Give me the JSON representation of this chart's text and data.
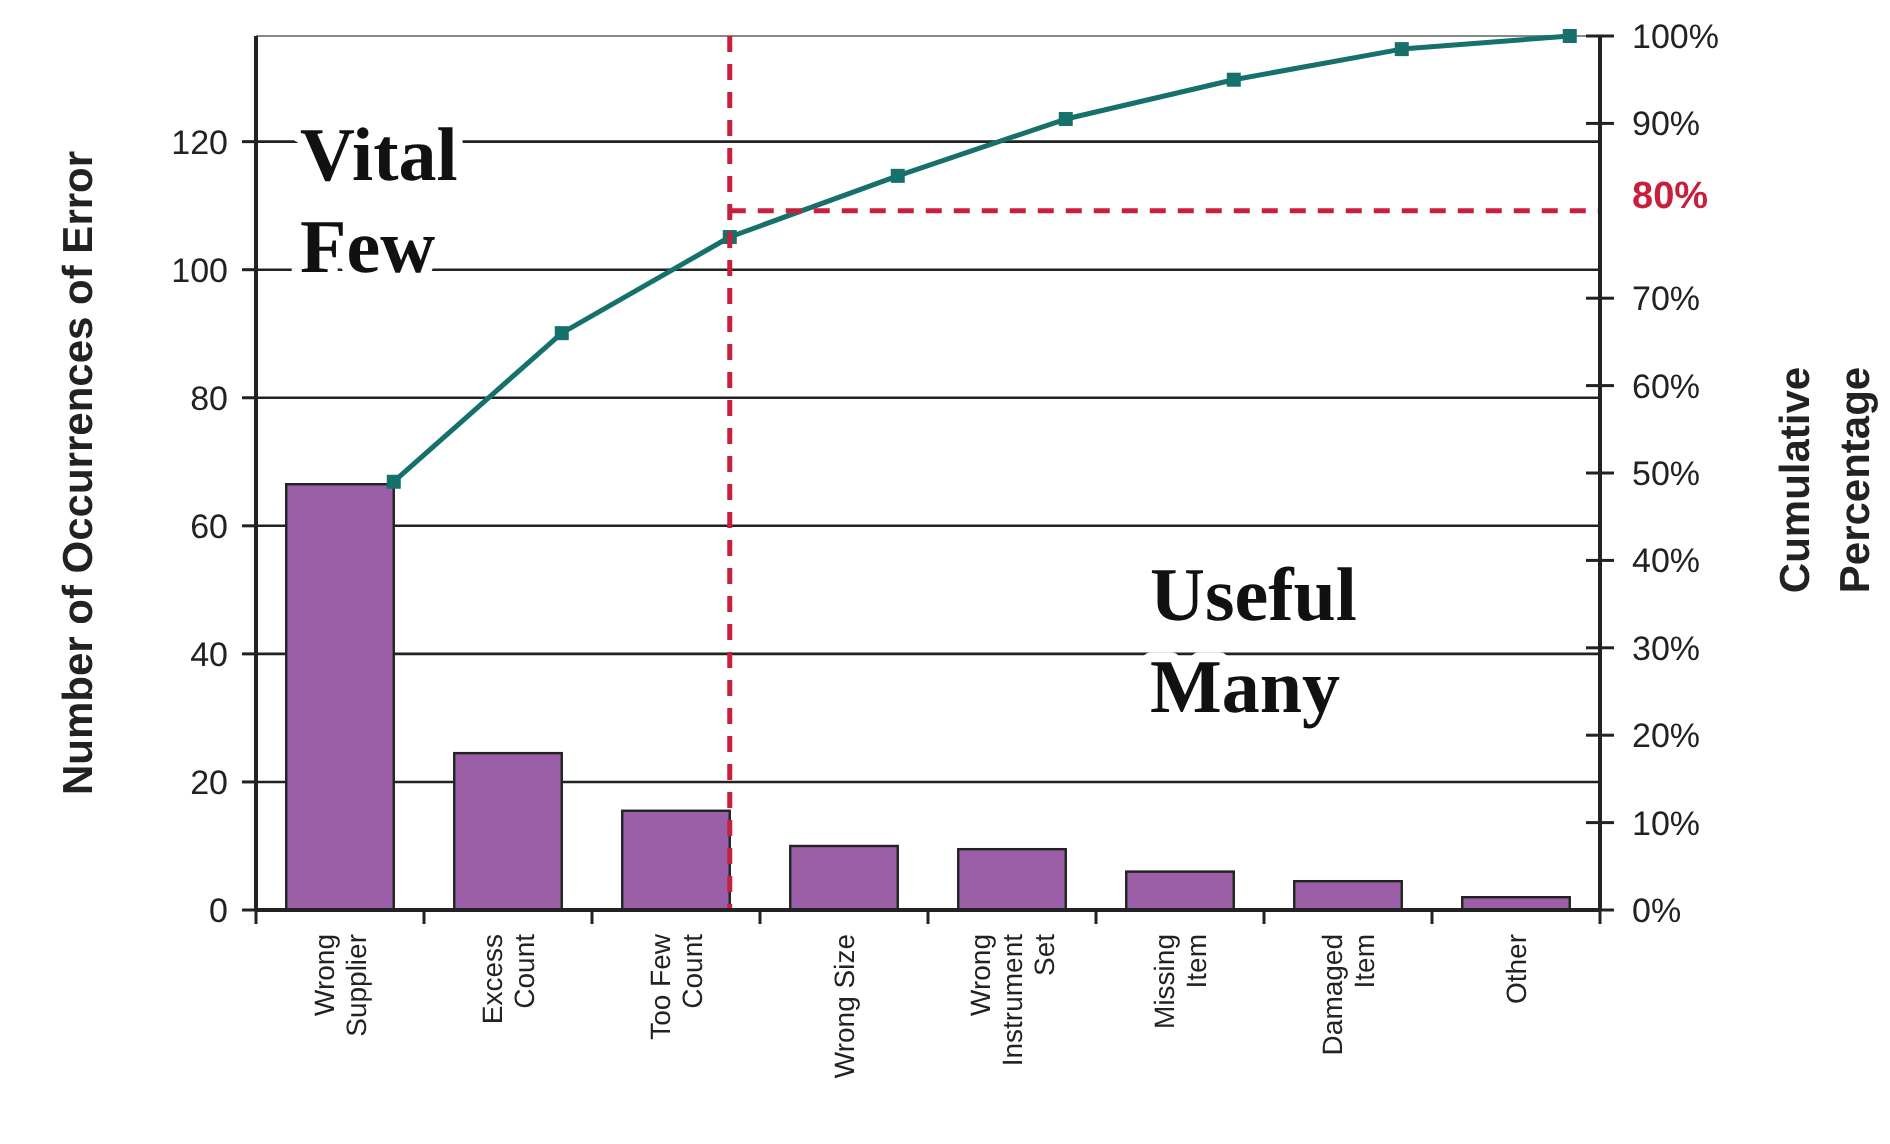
{
  "chart_data": {
    "type": "bar",
    "ylabel": "Number of Occurrences of Error",
    "y2label": "Cumulative\nPercentage",
    "categories": [
      "Wrong\nSupplier",
      "Excess\nCount",
      "Too Few\nCount",
      "Wrong Size",
      "Wrong\nInstrument\nSet",
      "Missing\nItem",
      "Damaged\nItem",
      "Other"
    ],
    "series": [
      {
        "color": "#9b5fa8",
        "values": [
          66.5,
          24.5,
          15.5,
          10,
          9.5,
          6,
          4.5,
          2
        ]
      },
      {
        "type": "line",
        "axis": "y2",
        "color": "#16706c",
        "values": [
          49,
          66,
          77,
          84,
          90.5,
          95,
          98.5,
          100
        ]
      }
    ],
    "ylim": [
      0,
      136.5
    ],
    "yticks": [
      0,
      20,
      40,
      60,
      80,
      100,
      120
    ],
    "y2lim": [
      0,
      100
    ],
    "y2ticks": [
      {
        "value": 0,
        "label": "0%"
      },
      {
        "value": 10,
        "label": "10%"
      },
      {
        "value": 20,
        "label": "20%"
      },
      {
        "value": 30,
        "label": "30%"
      },
      {
        "value": 40,
        "label": "40%"
      },
      {
        "value": 50,
        "label": "50%"
      },
      {
        "value": 60,
        "label": "60%"
      },
      {
        "value": 70,
        "label": "70%"
      },
      {
        "value": 90,
        "label": "90%"
      },
      {
        "value": 100,
        "label": "100%"
      }
    ],
    "ref_lines": [
      {
        "axis": "x",
        "value": "Too Few\nCount",
        "color": "#c8203c",
        "line_style": "dashed"
      },
      {
        "axis": "y2",
        "value": 80,
        "label": "80%",
        "color": "#c8203c",
        "line_style": "dashed"
      }
    ],
    "annotations": [
      "Vital\nFew",
      "Useful\nMany"
    ],
    "grid": "y",
    "marker": "square"
  }
}
